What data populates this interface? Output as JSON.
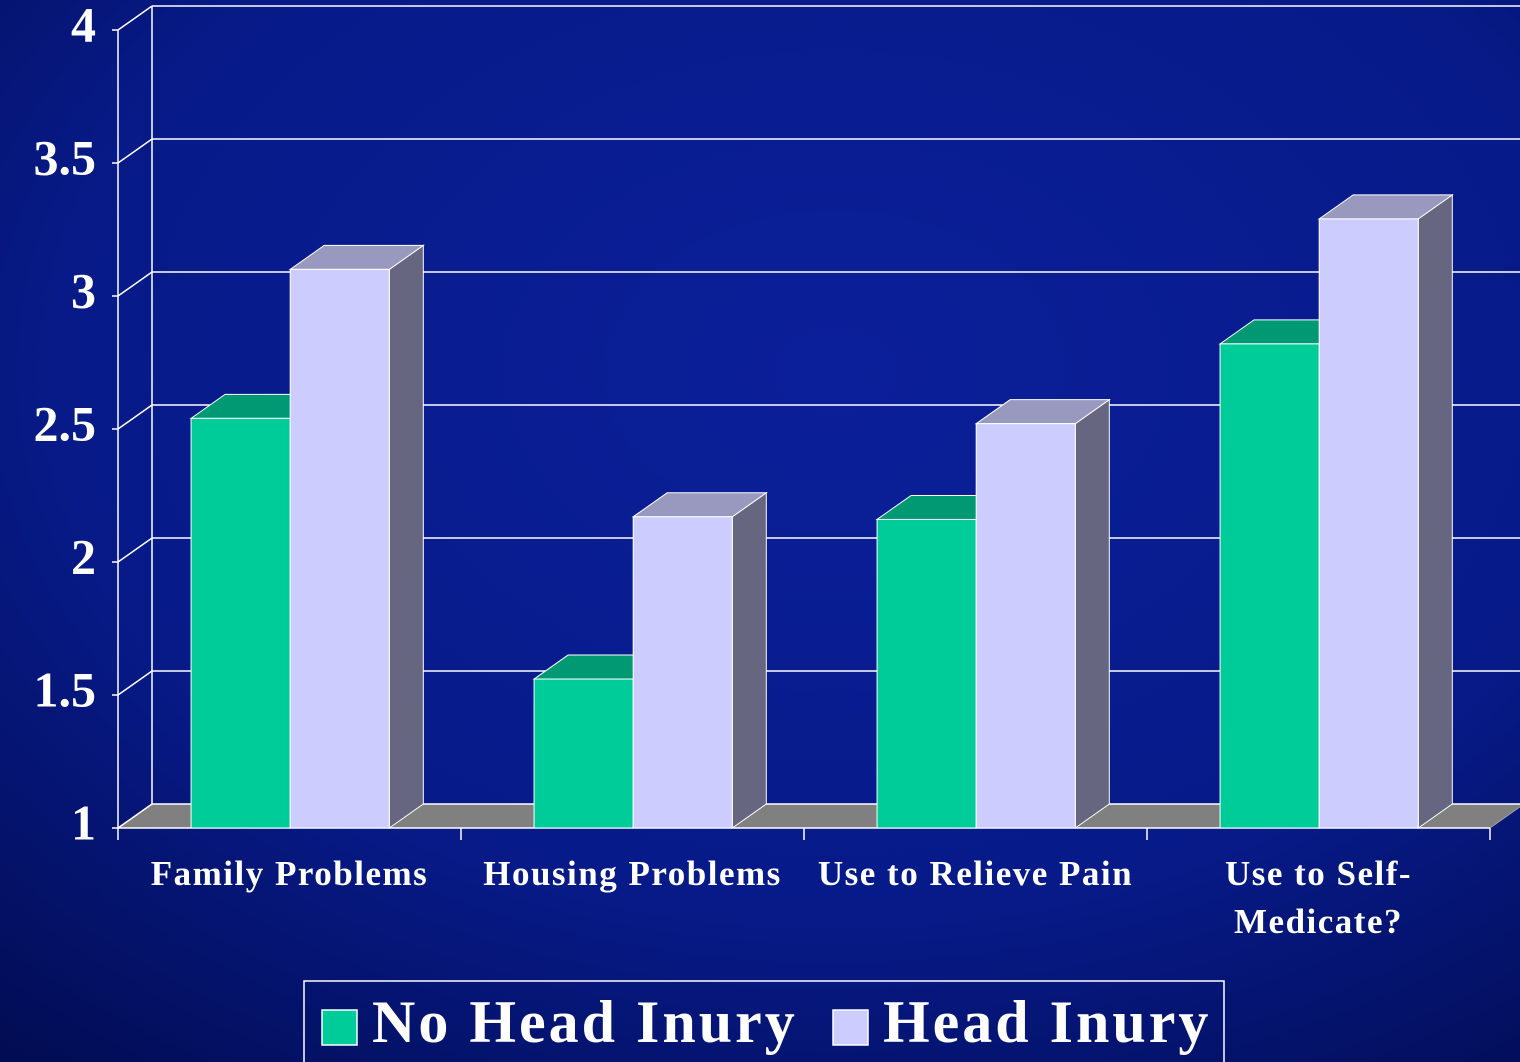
{
  "chart_data": {
    "type": "bar3d",
    "categories": [
      "Family Problems",
      "Housing Problems",
      "Use to Relieve Pain",
      "Use to Self-\nMedicate?"
    ],
    "series": [
      {
        "name": "No Head Inury",
        "color": "#00cc99",
        "values": [
          2.54,
          1.56,
          2.16,
          2.82
        ]
      },
      {
        "name": "Head Inury",
        "color": "#ccccff",
        "values": [
          3.1,
          2.17,
          2.52,
          3.29
        ]
      }
    ],
    "ylim": [
      1,
      4
    ],
    "yticks": [
      1,
      1.5,
      2,
      2.5,
      3,
      3.5,
      4
    ],
    "grid": true,
    "legend": "bottom"
  }
}
